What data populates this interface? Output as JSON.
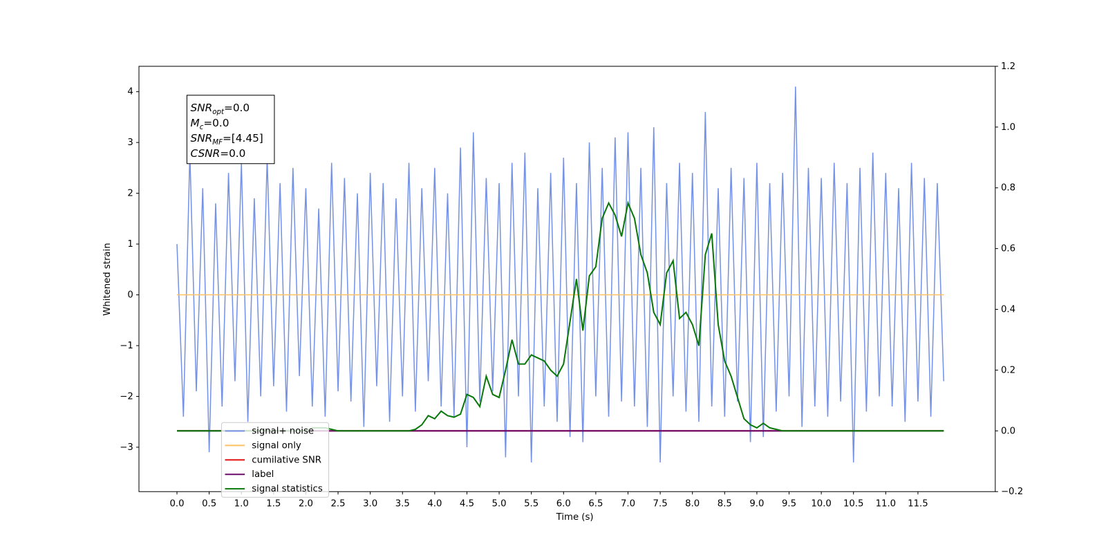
{
  "chart_data": {
    "type": "line",
    "xlabel": "Time (s)",
    "ylabel": "Whitened strain",
    "xlim": [
      -0.59,
      12.7
    ],
    "ylim": [
      -3.875,
      4.5
    ],
    "y2lim": [
      -0.2,
      1.2
    ],
    "xticks": [
      {
        "value": 0,
        "label": "0.0"
      },
      {
        "value": 0.5,
        "label": "0.5"
      },
      {
        "value": 1,
        "label": "1.0"
      },
      {
        "value": 1.5,
        "label": "1.5"
      },
      {
        "value": 2,
        "label": "2.0"
      },
      {
        "value": 2.5,
        "label": "2.5"
      },
      {
        "value": 3,
        "label": "3.0"
      },
      {
        "value": 3.5,
        "label": "3.5"
      },
      {
        "value": 4,
        "label": "4.0"
      },
      {
        "value": 4.5,
        "label": "4.5"
      },
      {
        "value": 5,
        "label": "5.0"
      },
      {
        "value": 5.5,
        "label": "5.5"
      },
      {
        "value": 6,
        "label": "6.0"
      },
      {
        "value": 6.5,
        "label": "6.5"
      },
      {
        "value": 7,
        "label": "7.0"
      },
      {
        "value": 7.5,
        "label": "7.5"
      },
      {
        "value": 8,
        "label": "8.0"
      },
      {
        "value": 8.5,
        "label": "8.5"
      },
      {
        "value": 9,
        "label": "9.0"
      },
      {
        "value": 9.5,
        "label": "9.5"
      },
      {
        "value": 10,
        "label": "10.0"
      },
      {
        "value": 10.5,
        "label": "10.5"
      },
      {
        "value": 11,
        "label": "11.0"
      },
      {
        "value": 11.5,
        "label": "11.5"
      }
    ],
    "yticks": [
      {
        "value": -3,
        "label": "−3"
      },
      {
        "value": -2,
        "label": "−2"
      },
      {
        "value": -1,
        "label": "−1"
      },
      0,
      1,
      2,
      3,
      4
    ],
    "y2ticks": [
      {
        "value": -0.2,
        "label": "−0.2"
      },
      {
        "value": 0,
        "label": "0.0"
      },
      {
        "value": 0.2,
        "label": "0.2"
      },
      {
        "value": 0.4,
        "label": "0.4"
      },
      {
        "value": 0.6,
        "label": "0.6"
      },
      {
        "value": 0.8,
        "label": "0.8"
      },
      {
        "value": 1,
        "label": "1.0"
      },
      {
        "value": 1.2,
        "label": "1.2"
      }
    ],
    "annotation": [
      {
        "name": "SNR",
        "sub": "opt",
        "text": "=0.0"
      },
      {
        "name": "M",
        "sub": "c",
        "text": "=0.0"
      },
      {
        "name": "SNR",
        "sub": "MF",
        "text": "=[4.45]"
      },
      {
        "name": "CSNR",
        "text": "=0.0"
      }
    ],
    "legend": "lower left",
    "x": [
      0,
      0.1,
      0.2,
      0.3,
      0.4,
      0.5,
      0.6,
      0.7,
      0.8,
      0.9,
      1,
      1.1,
      1.2,
      1.3,
      1.4,
      1.5,
      1.6,
      1.7,
      1.8,
      1.9,
      2,
      2.1,
      2.2,
      2.3,
      2.4,
      2.5,
      2.6,
      2.7,
      2.8,
      2.9,
      3,
      3.1,
      3.2,
      3.3,
      3.4,
      3.5,
      3.6,
      3.7,
      3.8,
      3.9,
      4,
      4.1,
      4.2,
      4.3,
      4.4,
      4.5,
      4.6,
      4.7,
      4.8,
      4.9,
      5,
      5.1,
      5.2,
      5.3,
      5.4,
      5.5,
      5.6,
      5.7,
      5.8,
      5.9,
      6,
      6.1,
      6.2,
      6.3,
      6.4,
      6.5,
      6.6,
      6.7,
      6.8,
      6.9,
      7,
      7.1,
      7.2,
      7.3,
      7.4,
      7.5,
      7.6,
      7.7,
      7.8,
      7.9,
      8,
      8.1,
      8.2,
      8.3,
      8.4,
      8.5,
      8.6,
      8.7,
      8.8,
      8.9,
      9,
      9.1,
      9.2,
      9.3,
      9.4,
      9.5,
      9.6,
      9.7,
      9.8,
      9.9,
      10,
      10.1,
      10.2,
      10.3,
      10.4,
      10.5,
      10.6,
      10.7,
      10.8,
      10.9,
      11,
      11.1,
      11.2,
      11.3,
      11.4,
      11.5,
      11.6,
      11.7,
      11.8,
      11.9
    ],
    "series": [
      {
        "name": "signal+ noise",
        "color": "#7592e6",
        "values": [
          1.0,
          -2.4,
          2.8,
          -1.9,
          2.1,
          -3.1,
          1.8,
          -2.2,
          2.4,
          -1.7,
          2.6,
          -2.5,
          1.9,
          -2.0,
          2.7,
          -1.8,
          2.2,
          -2.3,
          2.5,
          -1.6,
          2.1,
          -2.2,
          1.7,
          -2.4,
          2.6,
          -1.9,
          2.3,
          -2.1,
          2.0,
          -2.6,
          2.4,
          -1.8,
          2.2,
          -2.5,
          1.9,
          -2.0,
          2.6,
          -2.3,
          2.1,
          -1.7,
          2.5,
          -2.2,
          2.0,
          -2.4,
          2.9,
          -3.0,
          3.2,
          -2.1,
          2.3,
          -1.9,
          2.2,
          -3.2,
          2.6,
          -2.0,
          2.8,
          -3.3,
          2.1,
          -2.2,
          2.4,
          -2.5,
          2.7,
          -2.8,
          2.2,
          -2.9,
          3.0,
          -2.0,
          2.5,
          -2.4,
          3.1,
          -2.1,
          3.2,
          -2.2,
          2.5,
          -2.6,
          3.3,
          -3.3,
          2.2,
          -2.0,
          2.6,
          -2.3,
          2.4,
          -2.5,
          3.6,
          -2.2,
          2.1,
          -2.4,
          2.5,
          -2.1,
          2.3,
          -2.9,
          2.6,
          -2.8,
          2.2,
          -2.3,
          2.4,
          -2.0,
          4.1,
          -2.6,
          2.5,
          -2.2,
          2.3,
          -2.4,
          2.6,
          -2.1,
          2.2,
          -3.3,
          2.5,
          -2.3,
          2.8,
          -2.0,
          2.4,
          -2.2,
          2.1,
          -2.5,
          2.6,
          -2.1,
          2.3,
          -2.4,
          2.2,
          -1.7
        ]
      },
      {
        "name": "signal only",
        "color": "#ffc060",
        "x": [
          0,
          11.9
        ],
        "values": [
          0,
          0
        ]
      },
      {
        "name": "cumilative SNR",
        "color": "#e41a1c",
        "axis": "y2",
        "x": [
          0,
          11.9
        ],
        "values": [
          0,
          0
        ]
      },
      {
        "name": "label",
        "color": "#6a0a6a",
        "axis": "y2",
        "x": [
          0,
          11.9
        ],
        "values": [
          0,
          0
        ]
      },
      {
        "name": "signal statistics",
        "color": "#0a780a",
        "axis": "y2",
        "values": [
          0,
          0,
          0,
          0,
          0,
          0,
          0,
          0,
          0,
          0,
          0,
          0,
          0,
          0,
          0,
          0,
          0,
          0,
          0,
          0,
          0,
          0.01,
          0.01,
          0.01,
          0.005,
          0,
          0,
          0,
          0,
          0,
          0,
          0,
          0,
          0,
          0,
          0,
          0,
          0.005,
          0.02,
          0.05,
          0.04,
          0.065,
          0.05,
          0.045,
          0.055,
          0.12,
          0.11,
          0.08,
          0.18,
          0.12,
          0.11,
          0.2,
          0.3,
          0.22,
          0.22,
          0.25,
          0.24,
          0.23,
          0.2,
          0.18,
          0.22,
          0.36,
          0.5,
          0.33,
          0.51,
          0.54,
          0.7,
          0.75,
          0.71,
          0.64,
          0.75,
          0.7,
          0.58,
          0.52,
          0.39,
          0.35,
          0.52,
          0.56,
          0.37,
          0.39,
          0.35,
          0.28,
          0.58,
          0.65,
          0.35,
          0.23,
          0.18,
          0.11,
          0.04,
          0.02,
          0.01,
          0.025,
          0.01,
          0.005,
          0,
          0,
          0,
          0,
          0,
          0,
          0,
          0,
          0,
          0,
          0,
          0,
          0,
          0,
          0,
          0,
          0,
          0,
          0,
          0,
          0,
          0,
          0,
          0,
          0,
          0
        ]
      }
    ]
  }
}
